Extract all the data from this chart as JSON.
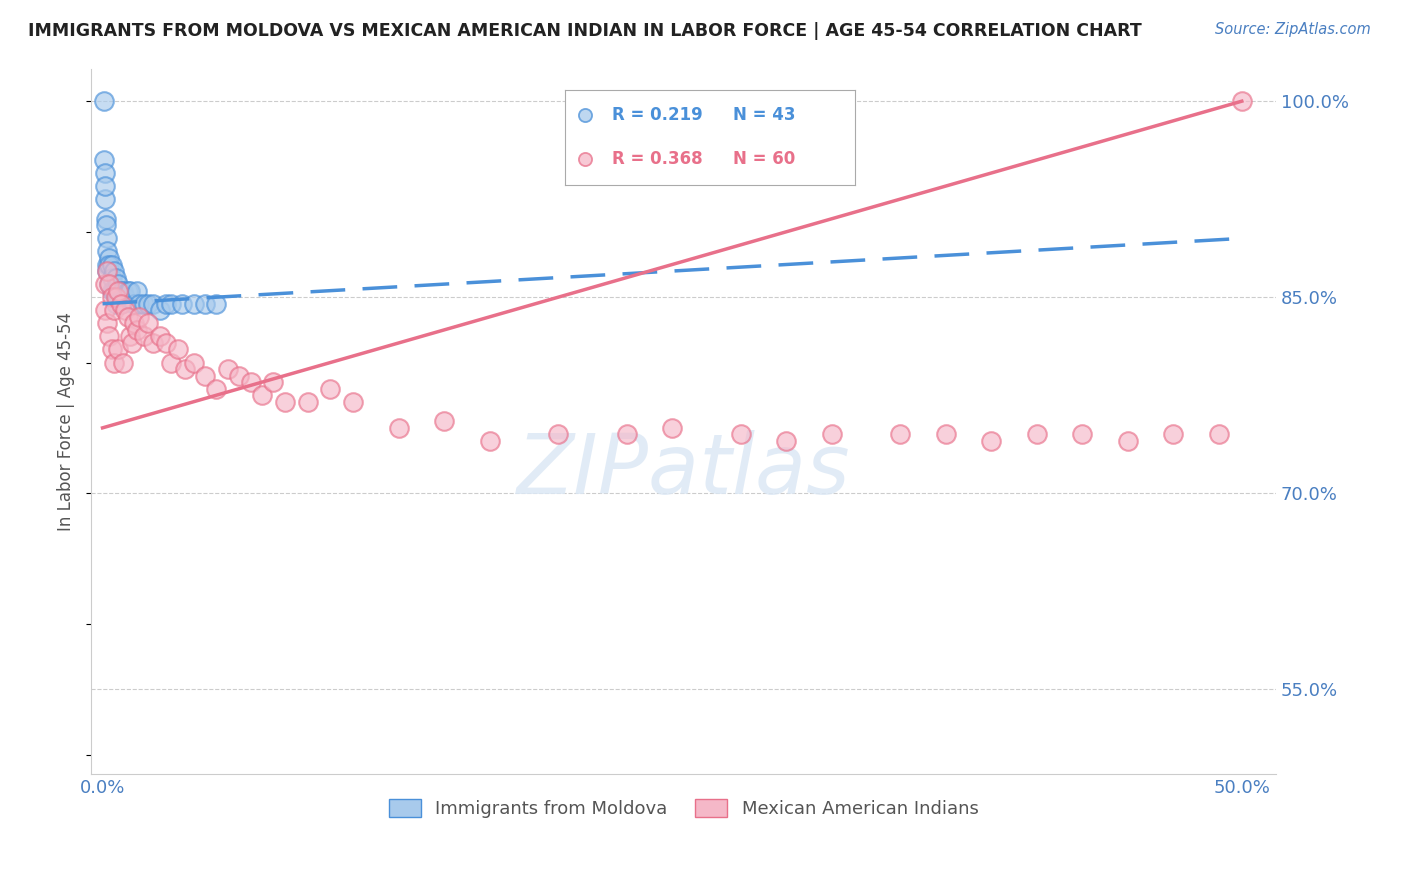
{
  "title": "IMMIGRANTS FROM MOLDOVA VS MEXICAN AMERICAN INDIAN IN LABOR FORCE | AGE 45-54 CORRELATION CHART",
  "source": "Source: ZipAtlas.com",
  "ylabel": "In Labor Force | Age 45-54",
  "xlim": [
    -0.005,
    0.515
  ],
  "ylim": [
    0.485,
    1.025
  ],
  "xtick_positions": [
    0.0,
    0.1,
    0.2,
    0.3,
    0.4,
    0.5
  ],
  "xticklabels": [
    "0.0%",
    "",
    "",
    "",
    "",
    "50.0%"
  ],
  "yticks_right": [
    0.55,
    0.7,
    0.85,
    1.0
  ],
  "ytick_labels_right": [
    "55.0%",
    "70.0%",
    "85.0%",
    "100.0%"
  ],
  "grid_color": "#cccccc",
  "background_color": "#ffffff",
  "moldova_color": "#a8caec",
  "mexico_color": "#f5b8c8",
  "moldova_edge_color": "#4a90d9",
  "mexico_edge_color": "#e8708a",
  "moldova_line_color": "#4a90d9",
  "mexico_line_color": "#e8708a",
  "moldova_R": 0.219,
  "moldova_N": 43,
  "mexico_R": 0.368,
  "mexico_N": 60,
  "moldova_label": "Immigrants from Moldova",
  "mexico_label": "Mexican American Indians",
  "moldova_points_x": [
    0.0005,
    0.0008,
    0.001,
    0.001,
    0.0012,
    0.0015,
    0.0015,
    0.002,
    0.002,
    0.002,
    0.002,
    0.003,
    0.003,
    0.003,
    0.004,
    0.004,
    0.004,
    0.005,
    0.005,
    0.006,
    0.006,
    0.006,
    0.007,
    0.007,
    0.008,
    0.008,
    0.009,
    0.01,
    0.011,
    0.012,
    0.014,
    0.015,
    0.016,
    0.018,
    0.02,
    0.022,
    0.025,
    0.028,
    0.03,
    0.035,
    0.04,
    0.045,
    0.05
  ],
  "moldova_points_y": [
    1.0,
    0.955,
    0.945,
    0.925,
    0.935,
    0.91,
    0.905,
    0.895,
    0.885,
    0.875,
    0.87,
    0.88,
    0.875,
    0.86,
    0.875,
    0.865,
    0.855,
    0.87,
    0.855,
    0.865,
    0.855,
    0.845,
    0.86,
    0.85,
    0.855,
    0.845,
    0.855,
    0.85,
    0.855,
    0.855,
    0.845,
    0.855,
    0.845,
    0.845,
    0.845,
    0.845,
    0.84,
    0.845,
    0.845,
    0.845,
    0.845,
    0.845,
    0.845
  ],
  "mexico_points_x": [
    0.001,
    0.001,
    0.002,
    0.002,
    0.003,
    0.003,
    0.004,
    0.004,
    0.005,
    0.005,
    0.006,
    0.007,
    0.007,
    0.008,
    0.009,
    0.01,
    0.011,
    0.012,
    0.013,
    0.014,
    0.015,
    0.016,
    0.018,
    0.02,
    0.022,
    0.025,
    0.028,
    0.03,
    0.033,
    0.036,
    0.04,
    0.045,
    0.05,
    0.055,
    0.06,
    0.065,
    0.07,
    0.075,
    0.08,
    0.09,
    0.1,
    0.11,
    0.13,
    0.15,
    0.17,
    0.2,
    0.23,
    0.25,
    0.28,
    0.3,
    0.32,
    0.35,
    0.37,
    0.39,
    0.41,
    0.43,
    0.45,
    0.47,
    0.49,
    0.5
  ],
  "mexico_points_y": [
    0.86,
    0.84,
    0.87,
    0.83,
    0.86,
    0.82,
    0.85,
    0.81,
    0.84,
    0.8,
    0.85,
    0.855,
    0.81,
    0.845,
    0.8,
    0.84,
    0.835,
    0.82,
    0.815,
    0.83,
    0.825,
    0.835,
    0.82,
    0.83,
    0.815,
    0.82,
    0.815,
    0.8,
    0.81,
    0.795,
    0.8,
    0.79,
    0.78,
    0.795,
    0.79,
    0.785,
    0.775,
    0.785,
    0.77,
    0.77,
    0.78,
    0.77,
    0.75,
    0.755,
    0.74,
    0.745,
    0.745,
    0.75,
    0.745,
    0.74,
    0.745,
    0.745,
    0.745,
    0.74,
    0.745,
    0.745,
    0.74,
    0.745,
    0.745,
    1.0
  ]
}
